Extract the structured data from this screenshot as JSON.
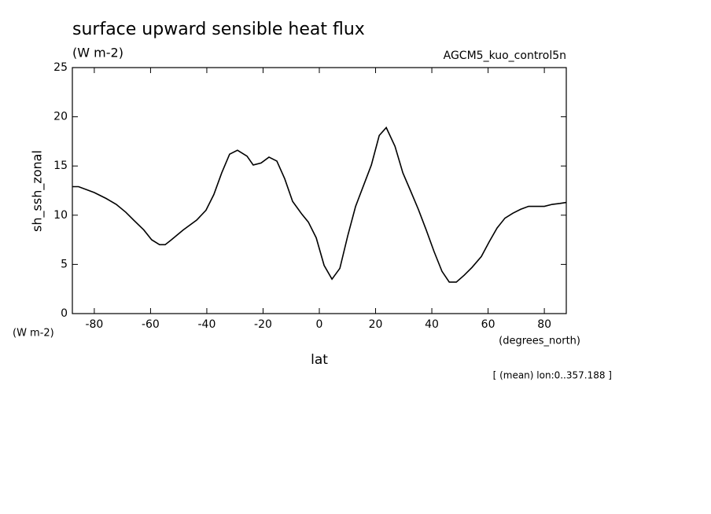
{
  "chart_data": {
    "type": "line",
    "title": "surface upward sensible heat flux",
    "subtitle": "(W m-2)",
    "model": "AGCM5_kuo_control5n",
    "y_label": "sh_ssh_zonal",
    "y_unit": "(W m-2)",
    "x_unit": "(degrees_north)",
    "x_label": "lat",
    "note": "[ (mean) lon:0..357.188 ]",
    "color": "#000000",
    "xlim": [
      -87.8,
      87.8
    ],
    "ylim": [
      0,
      25
    ],
    "xticks": [
      -80,
      -60,
      -40,
      -20,
      0,
      20,
      40,
      60,
      80
    ],
    "yticks": [
      0,
      5,
      10,
      15,
      20,
      25
    ],
    "x": [
      -87.8,
      -85.6,
      -80.0,
      -75.8,
      -72.2,
      -68.8,
      -66.0,
      -62.4,
      -59.6,
      -56.8,
      -54.8,
      -52.6,
      -48.4,
      -43.6,
      -40.3,
      -37.5,
      -34.7,
      -31.9,
      -29.1,
      -25.7,
      -23.5,
      -20.7,
      -17.9,
      -15.1,
      -12.3,
      -9.5,
      -6.2,
      -3.9,
      -1.1,
      1.7,
      4.5,
      7.3,
      10.1,
      12.9,
      18.5,
      21.3,
      23.8,
      26.9,
      29.7,
      32.4,
      35.2,
      38.0,
      40.8,
      43.6,
      46.2,
      48.7,
      51.5,
      54.3,
      57.6,
      60.4,
      63.2,
      66.0,
      68.8,
      71.6,
      74.4,
      77.2,
      80.0,
      82.8,
      85.6,
      87.8
    ],
    "values": [
      12.9,
      12.9,
      12.3,
      11.7,
      11.1,
      10.3,
      9.5,
      8.5,
      7.5,
      7.0,
      7.0,
      7.5,
      8.5,
      9.5,
      10.5,
      12.1,
      14.3,
      16.2,
      16.6,
      16.0,
      15.1,
      15.3,
      15.9,
      15.5,
      13.7,
      11.4,
      10.1,
      9.3,
      7.7,
      4.9,
      3.5,
      4.6,
      7.9,
      10.9,
      15.1,
      18.1,
      18.9,
      17.0,
      14.3,
      12.5,
      10.6,
      8.5,
      6.3,
      4.3,
      3.2,
      3.2,
      3.9,
      4.7,
      5.8,
      7.3,
      8.7,
      9.7,
      10.2,
      10.6,
      10.9,
      10.9,
      10.9,
      11.1,
      11.2,
      11.3
    ]
  }
}
